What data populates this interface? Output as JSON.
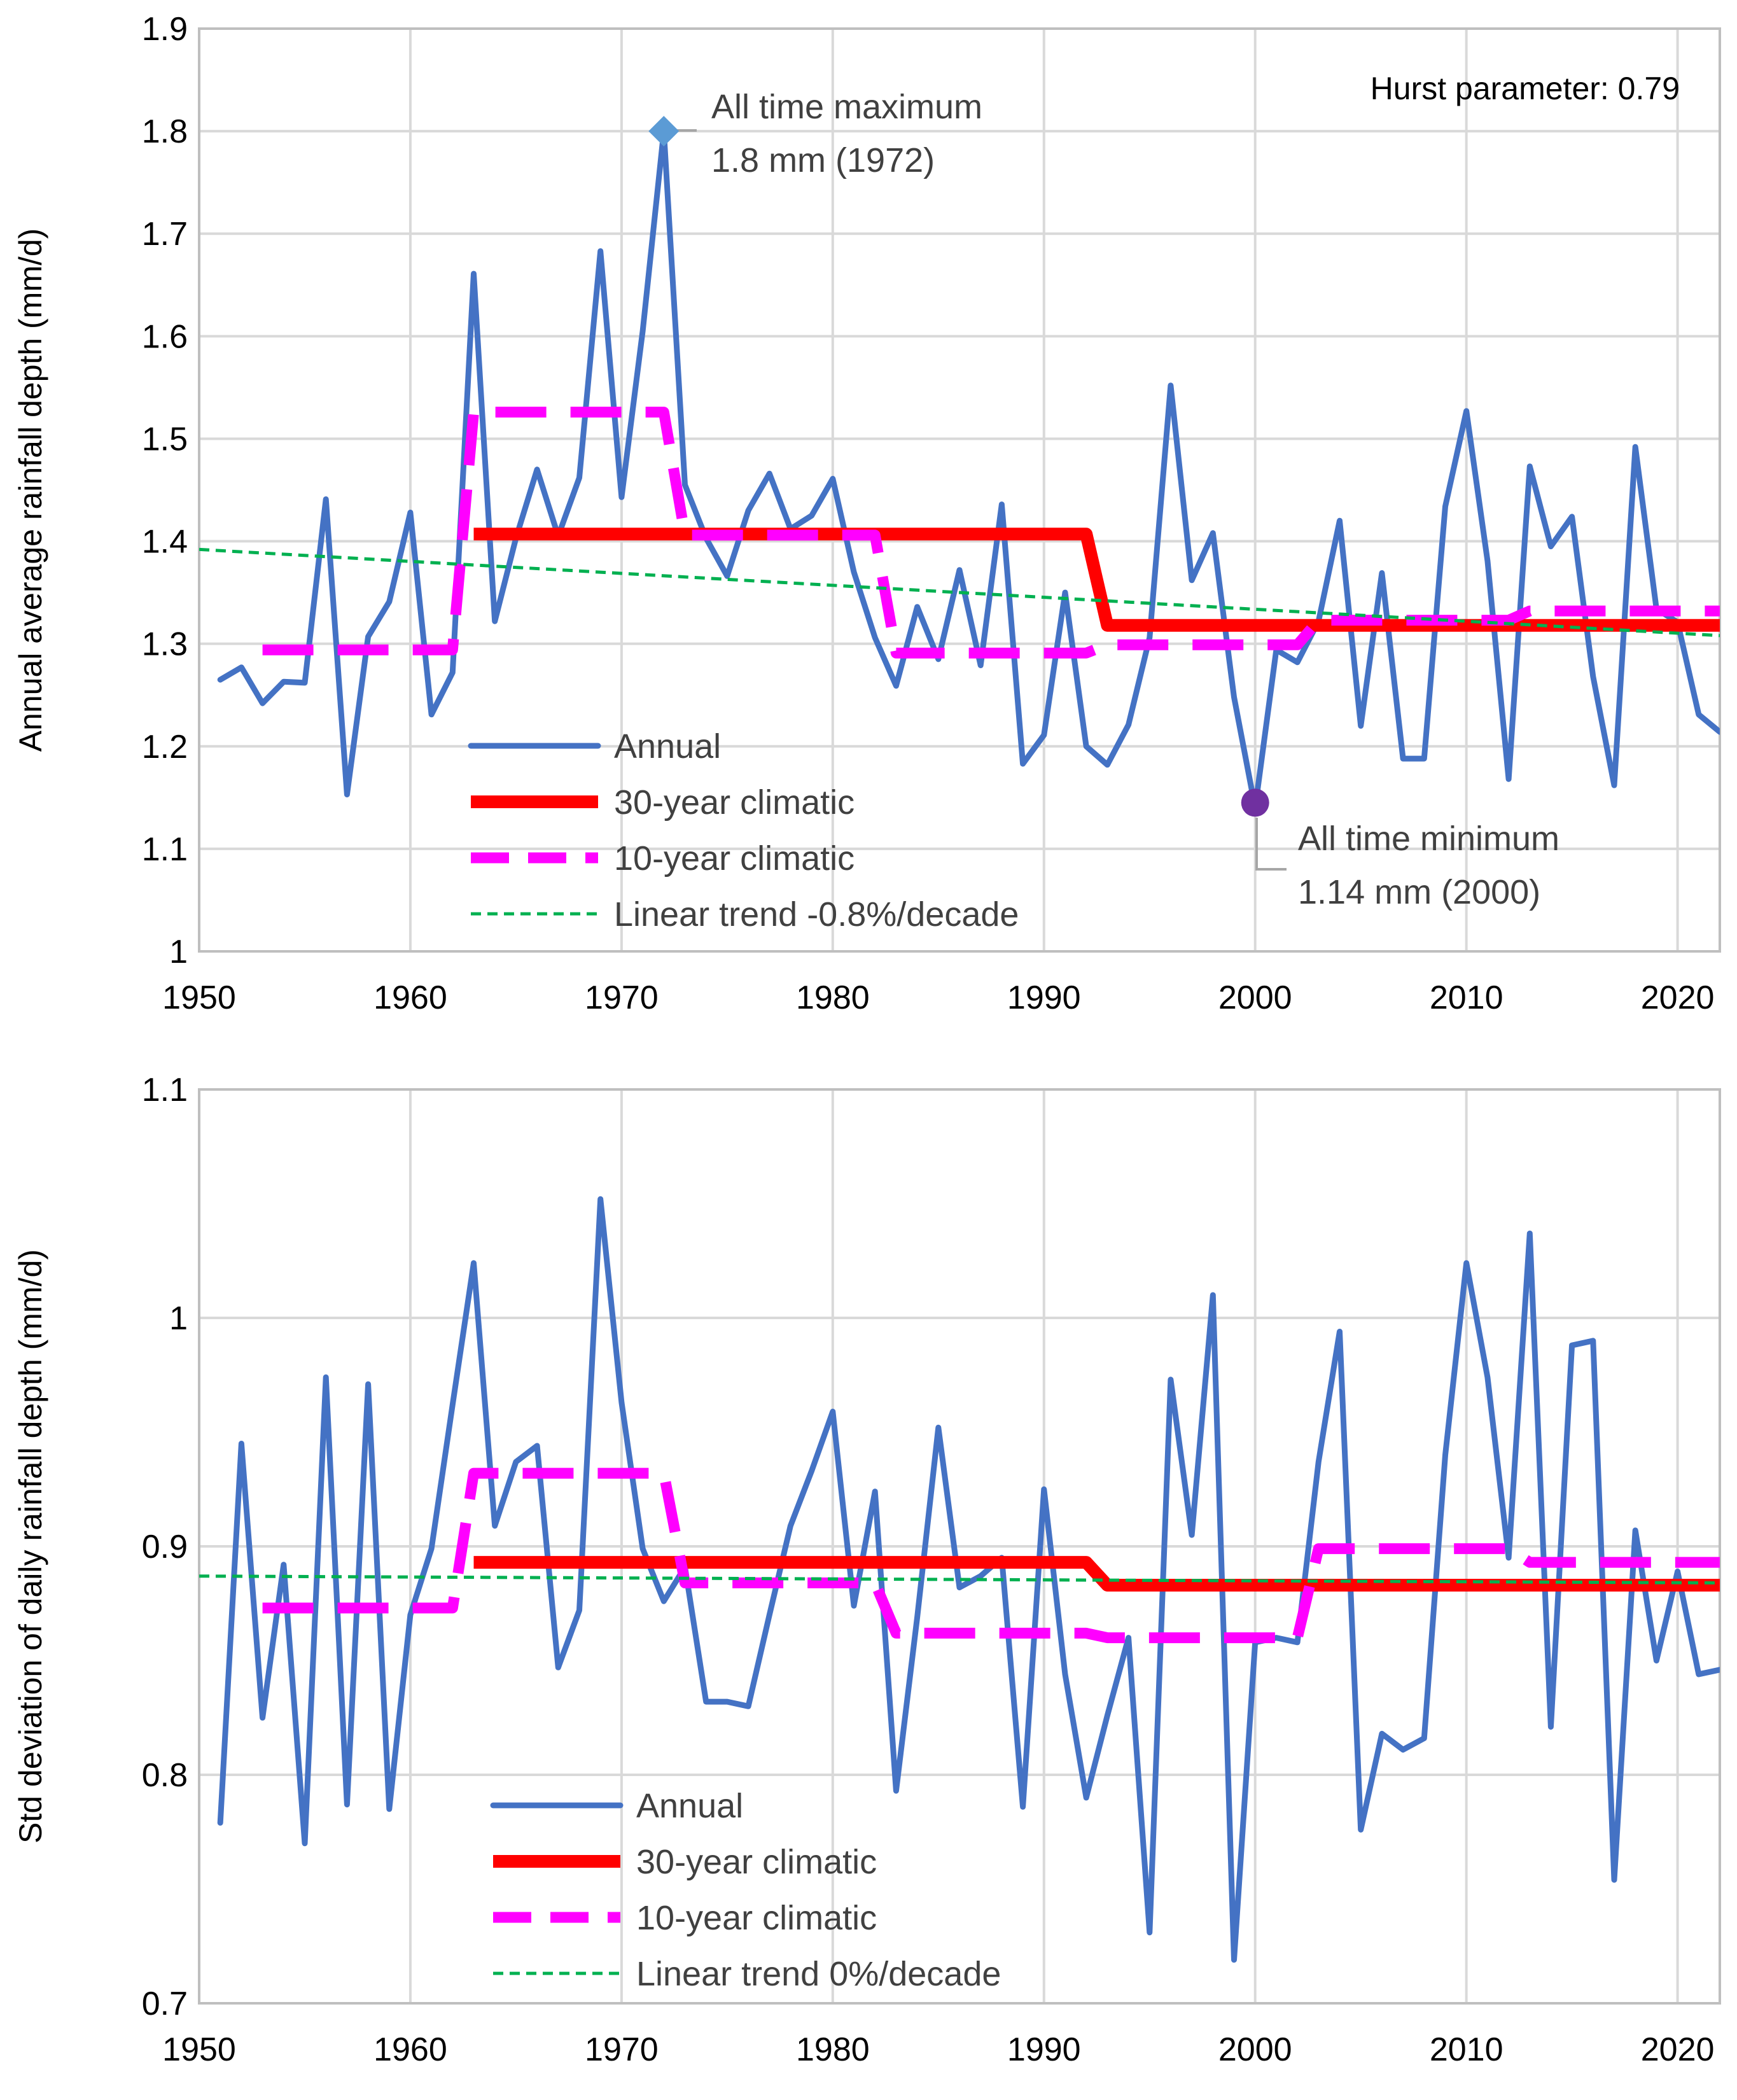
{
  "chart_data": [
    {
      "type": "line",
      "ylabel": "Annual average  rainfall depth (mm/d)",
      "xlim": [
        1950,
        2022
      ],
      "ylim": [
        1,
        1.9
      ],
      "xticks": [
        1950,
        1960,
        1970,
        1980,
        1990,
        2000,
        2010,
        2020
      ],
      "yticks": [
        1,
        1.1,
        1.2,
        1.3,
        1.4,
        1.5,
        1.6,
        1.7,
        1.8,
        1.9
      ],
      "grid": true,
      "legend_position": "bottom-left",
      "hurst_text": "Hurst parameter: 0.79",
      "series": [
        {
          "name": "Annual",
          "color": "#4472C4",
          "style": "solid",
          "x": [
            1951,
            1952,
            1953,
            1954,
            1955,
            1956,
            1957,
            1958,
            1959,
            1960,
            1961,
            1962,
            1963,
            1964,
            1965,
            1966,
            1967,
            1968,
            1969,
            1970,
            1971,
            1972,
            1973,
            1974,
            1975,
            1976,
            1977,
            1978,
            1979,
            1980,
            1981,
            1982,
            1983,
            1984,
            1985,
            1986,
            1987,
            1988,
            1989,
            1990,
            1991,
            1992,
            1993,
            1994,
            1995,
            1996,
            1997,
            1998,
            1999,
            2000,
            2001,
            2002,
            2003,
            2004,
            2005,
            2006,
            2007,
            2008,
            2009,
            2010,
            2011,
            2012,
            2013,
            2014,
            2015,
            2016,
            2017,
            2018,
            2019,
            2020,
            2021,
            2022
          ],
          "values": [
            1.265,
            1.277,
            1.242,
            1.263,
            1.262,
            1.441,
            1.153,
            1.307,
            1.341,
            1.428,
            1.231,
            1.272,
            1.661,
            1.322,
            1.403,
            1.47,
            1.405,
            1.462,
            1.683,
            1.443,
            1.605,
            1.8,
            1.455,
            1.403,
            1.366,
            1.43,
            1.466,
            1.412,
            1.425,
            1.461,
            1.37,
            1.306,
            1.259,
            1.336,
            1.285,
            1.372,
            1.279,
            1.436,
            1.183,
            1.211,
            1.35,
            1.2,
            1.182,
            1.221,
            1.306,
            1.552,
            1.362,
            1.408,
            1.248,
            1.14,
            1.294,
            1.282,
            1.322,
            1.42,
            1.22,
            1.369,
            1.188,
            1.188,
            1.434,
            1.527,
            1.381,
            1.168,
            1.473,
            1.395,
            1.424,
            1.268,
            1.162,
            1.492,
            1.334,
            1.321,
            1.231,
            1.214
          ]
        },
        {
          "name": "30-year climatic",
          "color": "#FF0000",
          "style": "thick",
          "x": [
            1963,
            1992,
            1993,
            2022
          ],
          "values": [
            1.407,
            1.407,
            1.318,
            1.318
          ]
        },
        {
          "name": "10-year climatic",
          "color": "#FF00FF",
          "style": "dashed",
          "x": [
            1953,
            1962,
            1963,
            1972,
            1973,
            1982,
            1983,
            1992,
            1993,
            2002,
            2003,
            2012,
            2013,
            2022
          ],
          "values": [
            1.294,
            1.294,
            1.526,
            1.526,
            1.406,
            1.406,
            1.291,
            1.291,
            1.299,
            1.299,
            1.323,
            1.323,
            1.332,
            1.332
          ]
        },
        {
          "name": "Linear trend -0.8%/decade",
          "color": "#00B050",
          "style": "dotted",
          "x": [
            1950,
            2022
          ],
          "values": [
            1.392,
            1.308
          ]
        }
      ],
      "annotations": [
        {
          "lines": [
            "All time maximum",
            "1.8 mm (1972)"
          ],
          "x": 1972,
          "y": 1.8,
          "marker_color": "#5B9BD5",
          "marker": "diamond"
        },
        {
          "lines": [
            "All time minimum",
            "1.14 mm (2000)"
          ],
          "x": 2000,
          "y": 1.145,
          "marker_color": "#7030A0",
          "marker": "circle"
        }
      ]
    },
    {
      "type": "line",
      "ylabel": "Std deviation of daily rainfall depth (mm/d)",
      "xlim": [
        1950,
        2022
      ],
      "ylim": [
        0.7,
        1.1
      ],
      "xticks": [
        1950,
        1960,
        1970,
        1980,
        1990,
        2000,
        2010,
        2020
      ],
      "yticks": [
        0.7,
        0.8,
        0.9,
        1,
        1.1
      ],
      "grid": true,
      "legend_position": "bottom-left",
      "series": [
        {
          "name": "Annual",
          "color": "#4472C4",
          "style": "solid",
          "x": [
            1951,
            1952,
            1953,
            1954,
            1955,
            1956,
            1957,
            1958,
            1959,
            1960,
            1961,
            1962,
            1963,
            1964,
            1965,
            1966,
            1967,
            1968,
            1969,
            1970,
            1971,
            1972,
            1973,
            1974,
            1975,
            1976,
            1977,
            1978,
            1979,
            1980,
            1981,
            1982,
            1983,
            1984,
            1985,
            1986,
            1987,
            1988,
            1989,
            1990,
            1991,
            1992,
            1993,
            1994,
            1995,
            1996,
            1997,
            1998,
            1999,
            2000,
            2001,
            2002,
            2003,
            2004,
            2005,
            2006,
            2007,
            2008,
            2009,
            2010,
            2011,
            2012,
            2013,
            2014,
            2015,
            2016,
            2017,
            2018,
            2019,
            2020,
            2021,
            2022
          ],
          "values": [
            0.779,
            0.945,
            0.825,
            0.892,
            0.77,
            0.974,
            0.787,
            0.971,
            0.785,
            0.87,
            0.899,
            0.962,
            1.024,
            0.909,
            0.937,
            0.944,
            0.847,
            0.872,
            1.052,
            0.963,
            0.899,
            0.876,
            0.891,
            0.832,
            0.832,
            0.83,
            0.87,
            0.909,
            0.933,
            0.959,
            0.874,
            0.924,
            0.793,
            0.869,
            0.952,
            0.882,
            0.887,
            0.895,
            0.786,
            0.925,
            0.844,
            0.79,
            0.826,
            0.86,
            0.731,
            0.973,
            0.905,
            1.01,
            0.719,
            0.858,
            0.86,
            0.858,
            0.937,
            0.994,
            0.776,
            0.818,
            0.811,
            0.816,
            0.94,
            1.024,
            0.974,
            0.895,
            1.037,
            0.821,
            0.988,
            0.99,
            0.754,
            0.907,
            0.85,
            0.889,
            0.844,
            0.846
          ]
        },
        {
          "name": "30-year climatic",
          "color": "#FF0000",
          "style": "thick",
          "x": [
            1963,
            1992,
            1993,
            2022
          ],
          "values": [
            0.893,
            0.893,
            0.883,
            0.883
          ]
        },
        {
          "name": "10-year climatic",
          "color": "#FF00FF",
          "style": "dashed",
          "x": [
            1953,
            1962,
            1963,
            1972,
            1973,
            1982,
            1983,
            1992,
            1993,
            2002,
            2003,
            2012,
            2013,
            2022
          ],
          "values": [
            0.873,
            0.873,
            0.932,
            0.932,
            0.884,
            0.884,
            0.862,
            0.862,
            0.86,
            0.86,
            0.899,
            0.899,
            0.893,
            0.893
          ]
        },
        {
          "name": "Linear trend 0%/decade",
          "color": "#00B050",
          "style": "dotted",
          "x": [
            1950,
            2022
          ],
          "values": [
            0.887,
            0.884
          ]
        }
      ],
      "annotations": []
    }
  ]
}
